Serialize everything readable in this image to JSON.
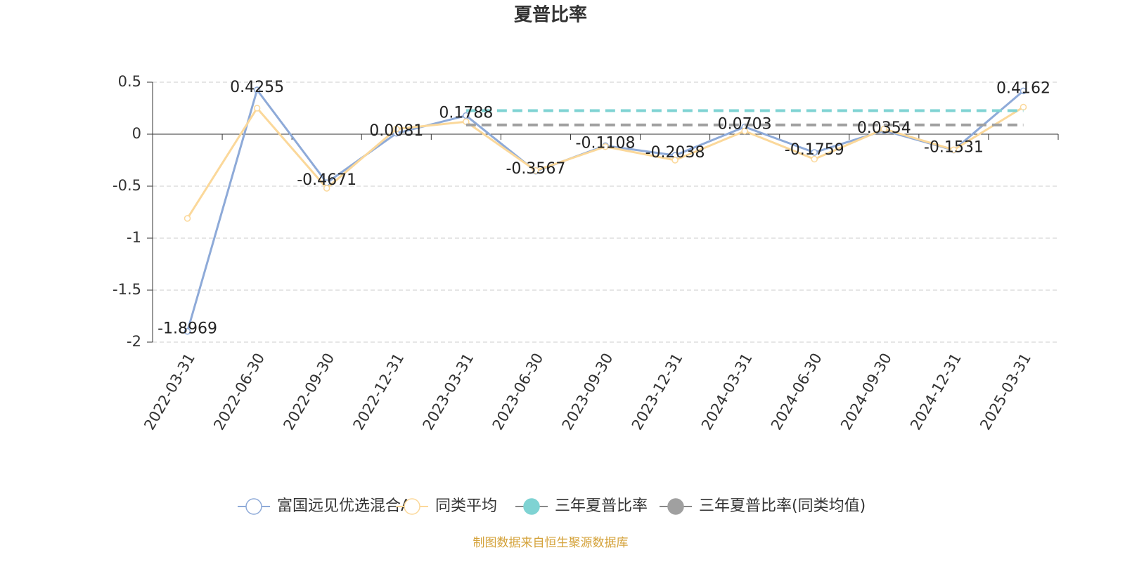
{
  "chart_data": {
    "type": "line",
    "title": "夏普比率",
    "categories": [
      "2022-03-31",
      "2022-06-30",
      "2022-09-30",
      "2022-12-31",
      "2023-03-31",
      "2023-06-30",
      "2023-09-30",
      "2023-12-31",
      "2024-03-31",
      "2024-06-30",
      "2024-09-30",
      "2024-12-31",
      "2025-03-31"
    ],
    "series": [
      {
        "name": "富国远见优选混合A",
        "color": "#8eaad8",
        "style": "marker",
        "labels": true,
        "values": [
          -1.8969,
          0.4255,
          -0.4671,
          0.0081,
          0.1788,
          -0.3567,
          -0.1108,
          -0.2038,
          0.0703,
          -0.1759,
          0.0354,
          -0.1531,
          0.4162
        ]
      },
      {
        "name": "同类平均",
        "color": "#fbd89a",
        "style": "marker",
        "labels": false,
        "values": [
          -0.81,
          0.25,
          -0.52,
          0.05,
          0.12,
          -0.35,
          -0.12,
          -0.25,
          0.03,
          -0.24,
          0.05,
          -0.15,
          0.26
        ]
      },
      {
        "name": "三年夏普比率",
        "color": "#7fd3d3",
        "style": "dashed",
        "labels": false,
        "values": [
          null,
          null,
          null,
          null,
          0.226,
          0.226,
          0.226,
          0.226,
          0.226,
          0.226,
          0.226,
          0.226,
          0.226
        ]
      },
      {
        "name": "三年夏普比率(同类均值)",
        "color": "#a0a0a0",
        "style": "dashed",
        "labels": false,
        "values": [
          null,
          null,
          null,
          null,
          0.089,
          0.089,
          0.089,
          0.089,
          0.089,
          0.089,
          0.089,
          0.089,
          0.089
        ]
      }
    ],
    "ylim": [
      -2,
      0.5
    ],
    "yticks": [
      -2,
      -1.5,
      -1,
      -0.5,
      0,
      0.5
    ],
    "grid": true,
    "legend": "bottom",
    "source": "制图数据来自恒生聚源数据库"
  }
}
